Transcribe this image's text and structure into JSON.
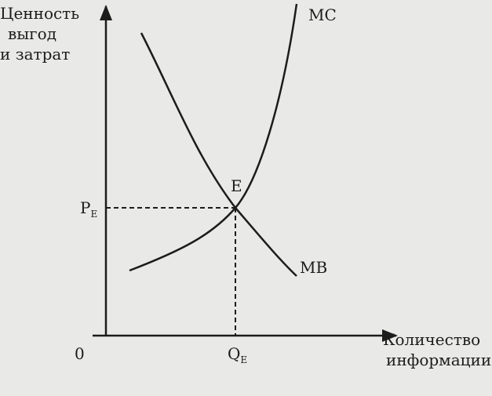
{
  "diagram": {
    "y_axis_label": [
      "Ценность",
      "выгод",
      "и затрат"
    ],
    "x_axis_label": [
      "Количество",
      "информации"
    ],
    "origin": "0",
    "curves": {
      "mc": "MC",
      "mb": "MB"
    },
    "equilibrium": "E",
    "price": {
      "main": "P",
      "sub": "E"
    },
    "quantity": {
      "main": "Q",
      "sub": "E"
    }
  }
}
